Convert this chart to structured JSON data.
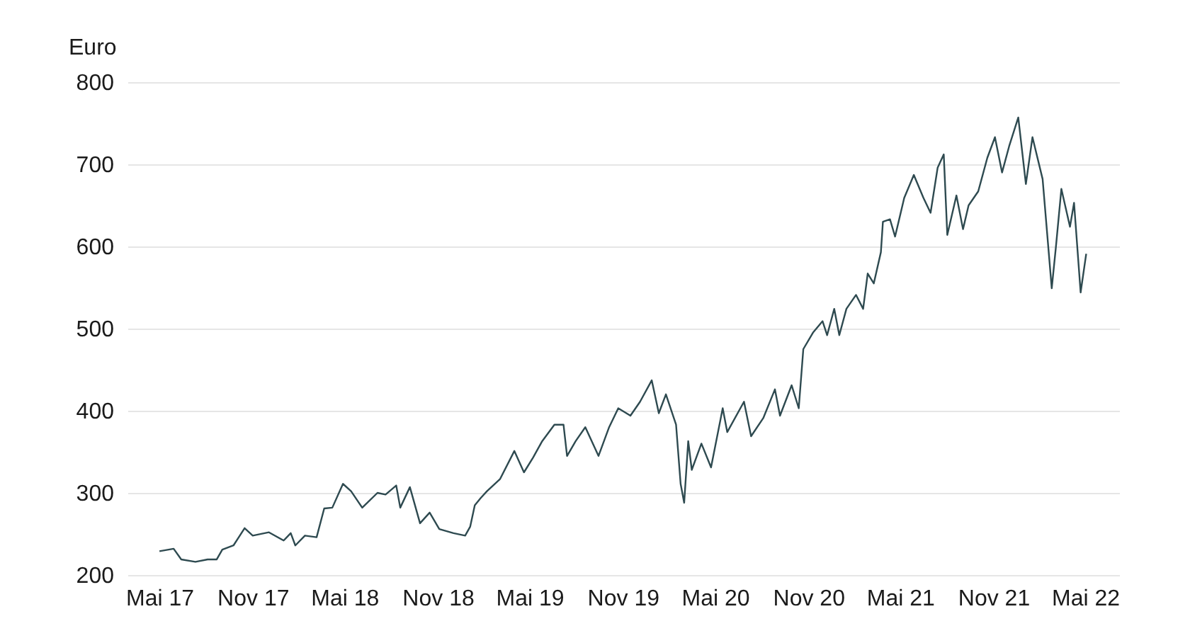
{
  "chart_data": {
    "type": "line",
    "ylabel": "Euro",
    "color": "#2e4a50",
    "grid": "y",
    "ylim": [
      200,
      800
    ],
    "yticks": [
      200,
      300,
      400,
      500,
      600,
      700,
      800
    ],
    "xlim": [
      "2017-02-27",
      "2022-07-07"
    ],
    "xticks": [
      {
        "value": "2017-05-01",
        "label": "Mai 17"
      },
      {
        "value": "2017-11-01",
        "label": "Nov 17"
      },
      {
        "value": "2018-05-01",
        "label": "Mai 18"
      },
      {
        "value": "2018-11-01",
        "label": "Nov 18"
      },
      {
        "value": "2019-05-01",
        "label": "Mai 19"
      },
      {
        "value": "2019-11-01",
        "label": "Nov 19"
      },
      {
        "value": "2020-05-01",
        "label": "Mai 20"
      },
      {
        "value": "2020-11-01",
        "label": "Nov 20"
      },
      {
        "value": "2021-05-01",
        "label": "Mai 21"
      },
      {
        "value": "2021-11-01",
        "label": "Nov 21"
      },
      {
        "value": "2022-05-01",
        "label": "Mai 22"
      }
    ],
    "x": [
      "2017-05-01",
      "2017-05-29",
      "2017-06-13",
      "2017-07-11",
      "2017-08-04",
      "2017-08-22",
      "2017-09-02",
      "2017-09-24",
      "2017-10-16",
      "2017-11-01",
      "2017-12-03",
      "2018-01-01",
      "2018-01-15",
      "2018-01-24",
      "2018-02-12",
      "2018-03-07",
      "2018-03-22",
      "2018-04-07",
      "2018-04-28",
      "2018-05-14",
      "2018-06-05",
      "2018-07-05",
      "2018-07-21",
      "2018-08-11",
      "2018-08-19",
      "2018-09-07",
      "2018-09-27",
      "2018-10-16",
      "2018-11-04",
      "2018-12-02",
      "2018-12-25",
      "2019-01-04",
      "2019-01-13",
      "2019-01-25",
      "2019-02-06",
      "2019-03-04",
      "2019-04-01",
      "2019-04-20",
      "2019-05-08",
      "2019-05-26",
      "2019-06-19",
      "2019-07-07",
      "2019-07-14",
      "2019-07-31",
      "2019-08-19",
      "2019-09-14",
      "2019-10-05",
      "2019-10-23",
      "2019-11-16",
      "2019-12-05",
      "2019-12-28",
      "2020-01-11",
      "2020-01-25",
      "2020-02-14",
      "2020-02-23",
      "2020-03-01",
      "2020-03-09",
      "2020-03-16",
      "2020-04-04",
      "2020-04-23",
      "2020-05-16",
      "2020-05-25",
      "2020-06-27",
      "2020-07-11",
      "2020-08-04",
      "2020-08-27",
      "2020-09-06",
      "2020-09-29",
      "2020-10-13",
      "2020-10-22",
      "2020-11-10",
      "2020-11-29",
      "2020-12-08",
      "2020-12-22",
      "2021-01-01",
      "2021-01-15",
      "2021-02-03",
      "2021-02-17",
      "2021-02-26",
      "2021-03-10",
      "2021-03-24",
      "2021-03-28",
      "2021-04-11",
      "2021-04-21",
      "2021-05-09",
      "2021-05-28",
      "2021-06-16",
      "2021-06-30",
      "2021-07-14",
      "2021-07-26",
      "2021-08-02",
      "2021-08-20",
      "2021-09-02",
      "2021-09-13",
      "2021-10-02",
      "2021-10-20",
      "2021-11-04",
      "2021-11-18",
      "2021-12-02",
      "2021-12-20",
      "2022-01-04",
      "2022-01-17",
      "2022-02-06",
      "2022-02-24",
      "2022-03-04",
      "2022-03-15",
      "2022-04-01",
      "2022-04-09",
      "2022-04-22",
      "2022-05-03"
    ],
    "values": [
      229,
      232,
      219,
      216,
      219,
      219,
      231,
      236,
      257,
      248,
      252,
      242,
      251,
      236,
      248,
      246,
      281,
      282,
      311,
      302,
      282,
      300,
      298,
      309,
      282,
      307,
      263,
      276,
      256,
      251,
      248,
      259,
      285,
      294,
      302,
      317,
      351,
      325,
      343,
      363,
      383,
      383,
      345,
      363,
      380,
      345,
      380,
      403,
      394,
      411,
      437,
      397,
      420,
      383,
      311,
      288,
      363,
      328,
      360,
      331,
      403,
      374,
      411,
      369,
      391,
      426,
      394,
      431,
      403,
      475,
      495,
      509,
      492,
      524,
      492,
      524,
      541,
      524,
      567,
      555,
      593,
      630,
      633,
      612,
      659,
      687,
      659,
      641,
      696,
      712,
      614,
      662,
      621,
      650,
      667,
      708,
      733,
      690,
      722,
      757,
      676,
      733,
      682,
      549,
      598,
      670,
      624,
      653,
      544,
      591
    ]
  }
}
